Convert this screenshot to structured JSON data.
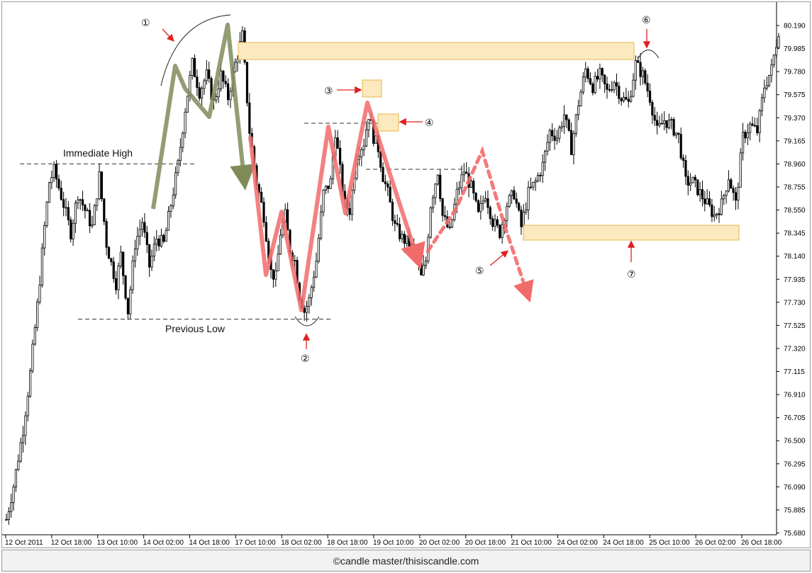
{
  "footer": {
    "credit": "©candle master/thisiscandle.com"
  },
  "chart_data": {
    "type": "candlestick",
    "ylim": [
      75.58,
      80.3
    ],
    "y_ticks": [
      "80.190",
      "79.985",
      "79.780",
      "79.575",
      "79.370",
      "79.165",
      "78.960",
      "78.755",
      "78.550",
      "78.345",
      "78.140",
      "77.935",
      "77.730",
      "77.525",
      "77.320",
      "77.115",
      "76.910",
      "76.705",
      "76.500",
      "76.295",
      "76.090",
      "75.885",
      "75.680"
    ],
    "x_ticks": [
      "12 Oct 2011",
      "12 Oct 18:00",
      "13 Oct 10:00",
      "14 Oct 02:00",
      "14 Oct 18:00",
      "17 Oct 10:00",
      "18 Oct 02:00",
      "18 Oct 18:00",
      "19 Oct 10:00",
      "20 Oct 02:00",
      "20 Oct 18:00",
      "21 Oct 10:00",
      "24 Oct 02:00",
      "24 Oct 18:00",
      "25 Oct 10:00",
      "26 Oct 02:00",
      "26 Oct 18:00"
    ],
    "x_tick_count": 17,
    "price_path": [
      [
        0,
        75.8
      ],
      [
        3,
        76.1
      ],
      [
        7,
        76.6
      ],
      [
        10,
        77.1
      ],
      [
        13,
        77.7
      ],
      [
        16,
        78.4
      ],
      [
        18,
        78.8
      ],
      [
        20,
        78.9
      ],
      [
        24,
        78.6
      ],
      [
        27,
        78.35
      ],
      [
        30,
        78.7
      ],
      [
        33,
        78.55
      ],
      [
        36,
        78.4
      ],
      [
        39,
        78.85
      ],
      [
        42,
        78.25
      ],
      [
        46,
        77.9
      ],
      [
        48,
        78.15
      ],
      [
        51,
        77.65
      ],
      [
        54,
        78.25
      ],
      [
        57,
        78.45
      ],
      [
        60,
        78.05
      ],
      [
        63,
        78.3
      ],
      [
        66,
        78.25
      ],
      [
        69,
        78.6
      ],
      [
        72,
        78.95
      ],
      [
        75,
        79.45
      ],
      [
        78,
        79.85
      ],
      [
        81,
        79.6
      ],
      [
        84,
        79.75
      ],
      [
        87,
        79.5
      ],
      [
        90,
        79.75
      ],
      [
        93,
        79.55
      ],
      [
        96,
        79.85
      ],
      [
        99,
        80.1
      ],
      [
        102,
        79.25
      ],
      [
        105,
        78.8
      ],
      [
        108,
        78.5
      ],
      [
        111,
        78.0
      ],
      [
        113,
        77.95
      ],
      [
        115,
        78.35
      ],
      [
        117,
        78.5
      ],
      [
        119,
        78.2
      ],
      [
        121,
        78.1
      ],
      [
        123,
        77.8
      ],
      [
        125,
        77.65
      ],
      [
        127,
        77.75
      ],
      [
        130,
        78.1
      ],
      [
        133,
        78.7
      ],
      [
        136,
        78.8
      ],
      [
        138,
        79.25
      ],
      [
        140,
        78.9
      ],
      [
        142,
        78.6
      ],
      [
        144,
        78.55
      ],
      [
        147,
        79.05
      ],
      [
        150,
        79.15
      ],
      [
        152,
        79.4
      ],
      [
        154,
        79.2
      ],
      [
        156,
        79.1
      ],
      [
        158,
        78.85
      ],
      [
        160,
        78.7
      ],
      [
        163,
        78.4
      ],
      [
        166,
        78.3
      ],
      [
        169,
        78.25
      ],
      [
        172,
        78.15
      ],
      [
        174,
        77.95
      ],
      [
        176,
        78.1
      ],
      [
        178,
        78.6
      ],
      [
        181,
        78.9
      ],
      [
        183,
        78.5
      ],
      [
        186,
        78.35
      ],
      [
        189,
        78.7
      ],
      [
        192,
        78.9
      ],
      [
        195,
        78.75
      ],
      [
        198,
        78.5
      ],
      [
        201,
        78.7
      ],
      [
        204,
        78.45
      ],
      [
        207,
        78.35
      ],
      [
        210,
        78.6
      ],
      [
        213,
        78.7
      ],
      [
        216,
        78.4
      ],
      [
        219,
        78.7
      ],
      [
        222,
        78.8
      ],
      [
        225,
        78.95
      ],
      [
        228,
        79.25
      ],
      [
        231,
        79.2
      ],
      [
        234,
        79.4
      ],
      [
        237,
        79.1
      ],
      [
        240,
        79.5
      ],
      [
        243,
        79.8
      ],
      [
        246,
        79.65
      ],
      [
        249,
        79.75
      ],
      [
        252,
        79.6
      ],
      [
        255,
        79.7
      ],
      [
        258,
        79.55
      ],
      [
        261,
        79.5
      ],
      [
        264,
        79.85
      ],
      [
        267,
        79.75
      ],
      [
        270,
        79.55
      ],
      [
        273,
        79.25
      ],
      [
        276,
        79.35
      ],
      [
        279,
        79.3
      ],
      [
        282,
        79.2
      ],
      [
        285,
        78.8
      ],
      [
        288,
        78.8
      ],
      [
        291,
        78.7
      ],
      [
        294,
        78.6
      ],
      [
        297,
        78.5
      ],
      [
        300,
        78.6
      ],
      [
        303,
        78.85
      ],
      [
        306,
        78.6
      ],
      [
        309,
        79.2
      ],
      [
        312,
        79.3
      ],
      [
        315,
        79.25
      ],
      [
        318,
        79.65
      ],
      [
        321,
        79.8
      ],
      [
        324,
        80.15
      ]
    ],
    "levels": [
      {
        "name": "immediate-high",
        "price": 78.96,
        "label": "Immediate High"
      },
      {
        "name": "previous-low",
        "price": 77.58,
        "label": "Previous Low"
      }
    ],
    "annotations": [
      "①",
      "②",
      "③",
      "④",
      "⑤",
      "⑥",
      "⑦"
    ],
    "colors": {
      "candle": "#000000",
      "green_path": "#7f8c5a",
      "red_path": "#f26b6b",
      "zone_fill": "#fde9bf",
      "zone_stroke": "#e6b84c",
      "arrow": "#e02020"
    }
  }
}
